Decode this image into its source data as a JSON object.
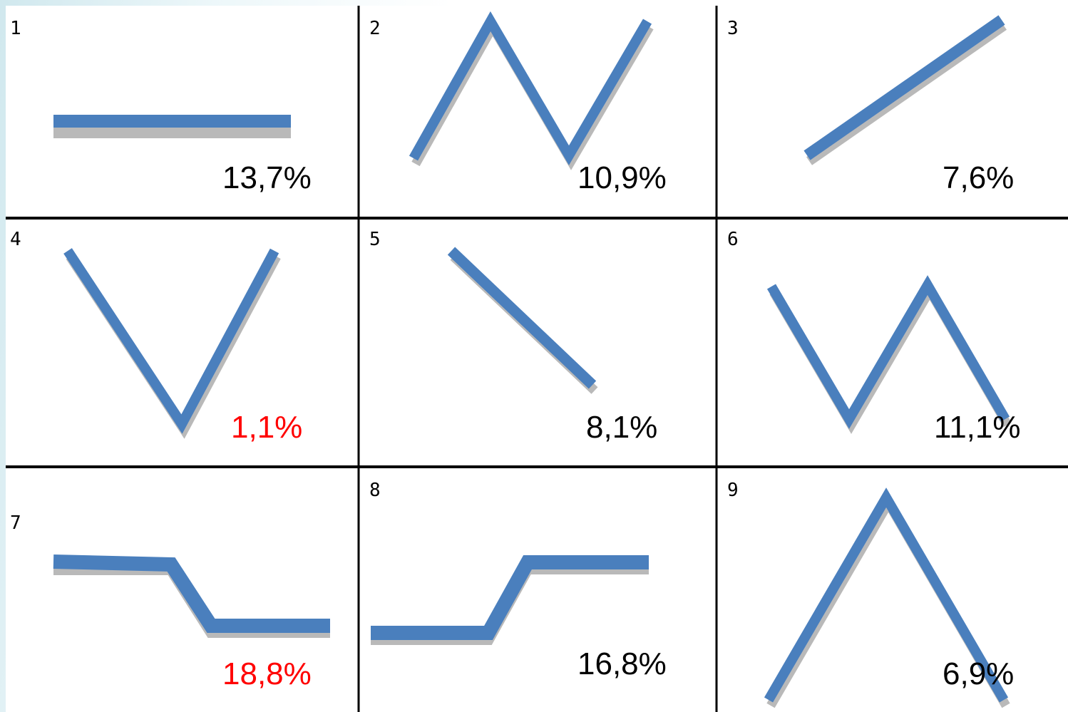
{
  "colors": {
    "line": "#4a7fbd",
    "shadow": "#b9b9b9",
    "divider": "#000000",
    "normal_text": "#000000",
    "highlight_text": "#ff0000"
  },
  "cells": [
    {
      "number": "1",
      "percent": "13,7%",
      "highlight": false,
      "pattern": "flat"
    },
    {
      "number": "2",
      "percent": "10,9%",
      "highlight": false,
      "pattern": "up-down-up"
    },
    {
      "number": "3",
      "percent": "7,6%",
      "highlight": false,
      "pattern": "rising"
    },
    {
      "number": "4",
      "percent": "1,1%",
      "highlight": true,
      "pattern": "down-up"
    },
    {
      "number": "5",
      "percent": "8,1%",
      "highlight": false,
      "pattern": "falling"
    },
    {
      "number": "6",
      "percent": "11,1%",
      "highlight": false,
      "pattern": "down-up-down"
    },
    {
      "number": "7",
      "percent": "18,8%",
      "highlight": true,
      "pattern": "step-down"
    },
    {
      "number": "8",
      "percent": "16,8%",
      "highlight": false,
      "pattern": "step-up"
    },
    {
      "number": "9",
      "percent": "6,9%",
      "highlight": false,
      "pattern": "up-down"
    }
  ]
}
